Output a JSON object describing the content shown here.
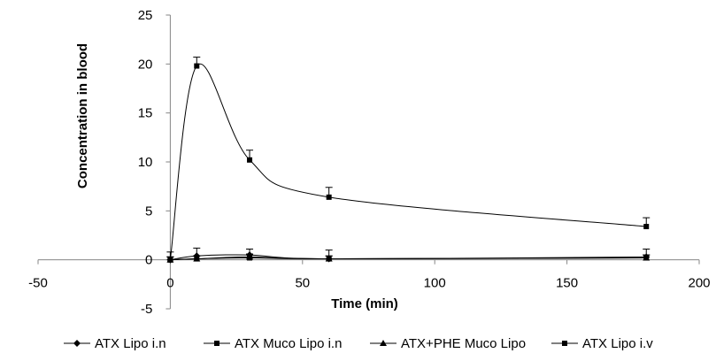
{
  "chart_data": {
    "type": "scatter",
    "title": "",
    "xlabel": "Time (min)",
    "ylabel": "Concentration in blood",
    "xlim": [
      -50,
      200
    ],
    "ylim": [
      -5,
      25
    ],
    "x_ticks": [
      -50,
      0,
      50,
      100,
      150,
      200
    ],
    "y_ticks": [
      -5,
      0,
      5,
      10,
      15,
      20,
      25
    ],
    "grid": false,
    "legend_position": "bottom",
    "smoothed_lines": true,
    "series": [
      {
        "name": "ATX Lipo i.n",
        "marker": "diamond",
        "color": "#000000",
        "x": [
          0,
          10,
          30,
          60,
          180
        ],
        "y": [
          0,
          0.4,
          0.5,
          0.1,
          0.3
        ],
        "error": [
          0.8,
          0.8,
          0.6,
          0.9,
          0.8
        ]
      },
      {
        "name": "ATX Muco Lipo i.n",
        "marker": "square",
        "color": "#000000",
        "x": [
          0,
          10,
          30,
          60,
          180
        ],
        "y": [
          0,
          0.1,
          0.2,
          0.1,
          0.2
        ],
        "error": [
          0.3,
          0.3,
          0.3,
          0.3,
          0.3
        ]
      },
      {
        "name": "ATX+PHE Muco Lipo",
        "marker": "triangle",
        "color": "#000000",
        "x": [
          0,
          10,
          30,
          60,
          180
        ],
        "y": [
          0,
          0.1,
          0.3,
          0.1,
          0.2
        ],
        "error": [
          0.3,
          0.3,
          0.3,
          0.3,
          0.3
        ]
      },
      {
        "name": "ATX Lipo i.v",
        "marker": "square",
        "color": "#000000",
        "x": [
          0,
          10,
          30,
          60,
          180
        ],
        "y": [
          0,
          19.8,
          10.2,
          6.4,
          3.4
        ],
        "error": [
          0.3,
          0.9,
          1.0,
          1.0,
          0.9
        ]
      }
    ]
  }
}
